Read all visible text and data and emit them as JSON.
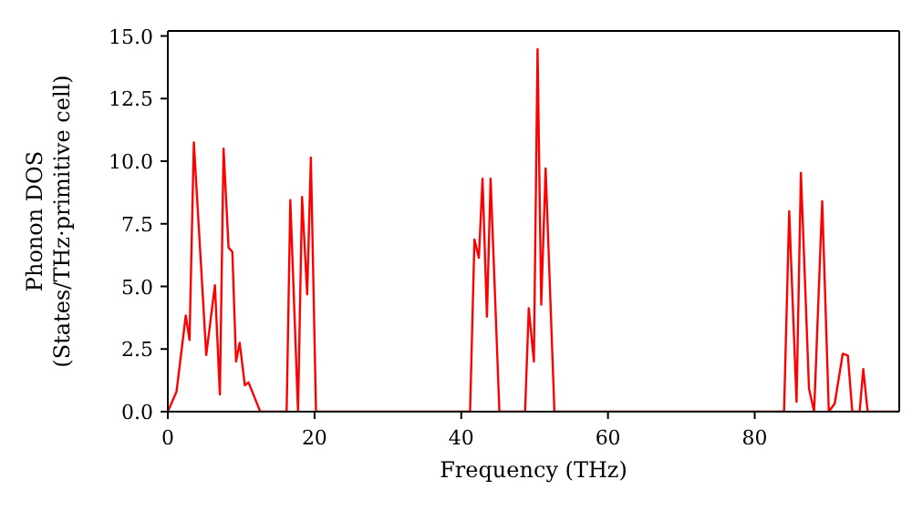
{
  "chart_data": {
    "type": "line",
    "xlabel": "Frequency (THz)",
    "ylabel": "Phonon DOS\n(States/THz·primitive cell)",
    "x": [
      0,
      1.19,
      2.45,
      2.96,
      3.55,
      5.24,
      6.42,
      7.1,
      7.6,
      8.28,
      8.8,
      9.3,
      9.8,
      10.5,
      11.0,
      12.6,
      16.2,
      16.7,
      17.75,
      18.3,
      19.0,
      19.5,
      20.2,
      41.2,
      41.8,
      42.4,
      42.9,
      43.5,
      44.0,
      45.2,
      48.7,
      49.2,
      49.9,
      50.4,
      50.9,
      51.5,
      52.7,
      84.0,
      84.7,
      85.7,
      86.3,
      87.4,
      88.1,
      89.2,
      90.1,
      90.9,
      92.0,
      92.7,
      93.3,
      94.3,
      94.8,
      95.4,
      99.7
    ],
    "series": [
      {
        "color": "#ff0000",
        "values": [
          0,
          0.8,
          3.84,
          2.86,
          10.75,
          2.26,
          5.05,
          0.68,
          10.5,
          6.55,
          6.38,
          2.0,
          2.75,
          1.05,
          1.17,
          0,
          0,
          8.45,
          0,
          8.57,
          4.68,
          10.15,
          0,
          0,
          6.87,
          6.14,
          9.3,
          3.79,
          9.3,
          0,
          0,
          4.13,
          2.0,
          14.47,
          4.27,
          9.71,
          0,
          0,
          8.0,
          0.39,
          9.54,
          0.92,
          0,
          8.4,
          0,
          0.32,
          2.31,
          2.24,
          0,
          0,
          1.7,
          0,
          0
        ]
      }
    ],
    "xlim": [
      0,
      99.7
    ],
    "xticks": [
      0,
      20,
      40,
      60,
      80
    ],
    "ylim": [
      0,
      15.2
    ],
    "yticks": [
      {
        "value": 0,
        "label": "0.0"
      },
      {
        "value": 2.5,
        "label": "2.5"
      },
      {
        "value": 5,
        "label": "5.0"
      },
      {
        "value": 7.5,
        "label": "7.5"
      },
      {
        "value": 10,
        "label": "10.0"
      },
      {
        "value": 12.5,
        "label": "12.5"
      },
      {
        "value": 15,
        "label": "15.0"
      }
    ],
    "grid": false,
    "legend": false,
    "marker": "none",
    "line_style": "solid"
  }
}
